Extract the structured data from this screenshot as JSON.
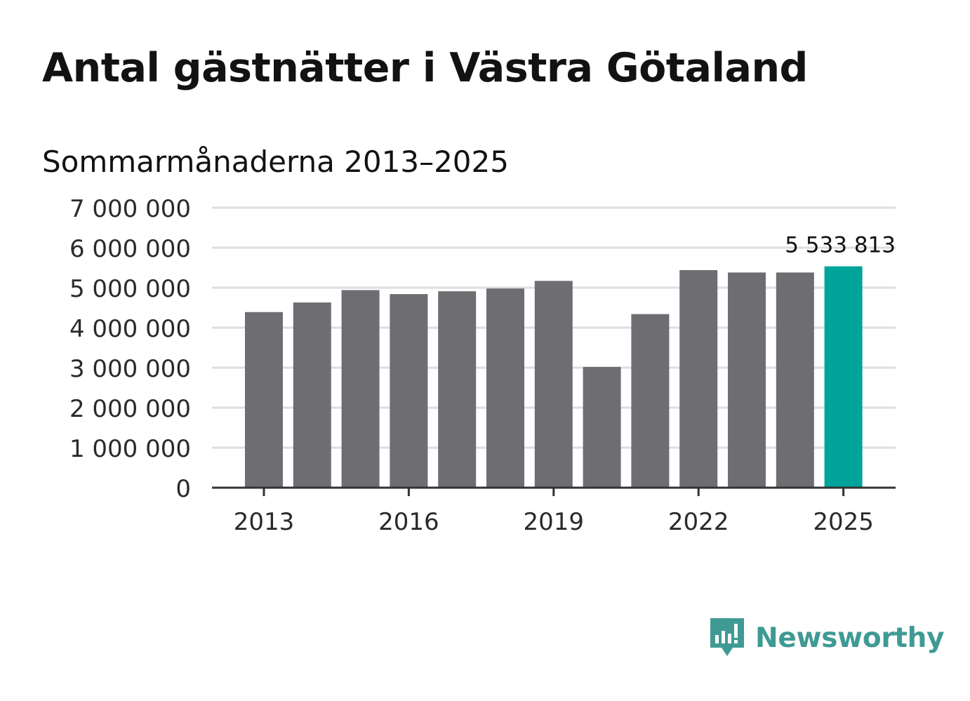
{
  "title": "Antal gästnätter i Västra Götaland",
  "subtitle": "Sommarmånaderna 2013–2025",
  "brand": {
    "name": "Newsworthy",
    "color": "#3f9a94",
    "icon": "newsworthy-logo-icon"
  },
  "colors": {
    "bar": "#6e6d72",
    "highlight": "#00a49a",
    "grid": "#dddddd",
    "axis": "#333333"
  },
  "chart_data": {
    "type": "bar",
    "x": [
      2013,
      2014,
      2015,
      2016,
      2017,
      2018,
      2019,
      2020,
      2021,
      2022,
      2023,
      2024,
      2025
    ],
    "values": [
      4390000,
      4630000,
      4940000,
      4840000,
      4910000,
      4980000,
      5170000,
      3020000,
      4340000,
      5440000,
      5380000,
      5380000,
      5533813
    ],
    "highlight_index": 12,
    "value_label": "5 533 813",
    "ylim": [
      0,
      7000000
    ],
    "yticks": [
      0,
      1000000,
      2000000,
      3000000,
      4000000,
      5000000,
      6000000,
      7000000
    ],
    "ytick_labels": [
      "0",
      "1 000 000",
      "2 000 000",
      "3 000 000",
      "4 000 000",
      "5 000 000",
      "6 000 000",
      "7 000 000"
    ],
    "xticks": [
      2013,
      2016,
      2019,
      2022,
      2025
    ],
    "xtick_labels": [
      "2013",
      "2016",
      "2019",
      "2022",
      "2025"
    ],
    "grid": true,
    "legend": "none"
  }
}
